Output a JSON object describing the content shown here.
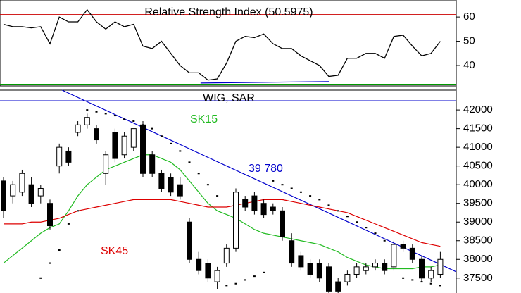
{
  "chart_data": [
    {
      "type": "line",
      "title": "Relative Strength Index (50.5975)",
      "values": [
        57,
        56,
        56,
        55.5,
        56,
        49,
        60,
        58,
        58,
        63,
        58,
        55,
        58,
        56,
        57,
        48,
        47,
        50,
        45,
        40,
        37,
        37,
        34,
        34.5,
        41,
        50,
        52,
        51.5,
        53,
        49,
        47,
        47,
        44,
        42,
        40,
        35.5,
        36,
        43,
        43,
        45,
        45,
        43,
        52,
        52.5,
        48,
        44,
        45,
        50
      ],
      "color": "#000000",
      "ylim": [
        31.6,
        67
      ],
      "yticks": [
        40,
        50,
        60
      ],
      "reference_lines": [
        {
          "value": 61,
          "color": "#cc0000"
        },
        {
          "value": 32.3,
          "color": "#009900"
        }
      ],
      "trend_lines": [
        {
          "x": [
            21.2,
            35
          ],
          "values": [
            32.8,
            33.4
          ],
          "color": "#0000cc"
        }
      ]
    },
    {
      "type": "candlestick",
      "title": "WIG, SAR",
      "open": [
        40100,
        39700,
        39800,
        40000,
        39700,
        39500,
        40500,
        40900,
        41400,
        41600,
        41500,
        40300,
        41400,
        40800,
        41000,
        41600,
        40800,
        40300,
        40200,
        40000,
        39000,
        38000,
        37900,
        37400,
        37900,
        38300,
        39600,
        39700,
        39500,
        39400,
        39300,
        38500,
        38100,
        37900,
        37900,
        37800,
        37400,
        37400,
        37600,
        37700,
        37800,
        37900,
        37800,
        38400,
        38300,
        38000,
        37500,
        37600
      ],
      "high": [
        40200,
        40100,
        40400,
        40200,
        40000,
        39600,
        41100,
        41000,
        41700,
        41900,
        41600,
        40900,
        41500,
        41400,
        41500,
        41700,
        40900,
        40400,
        40300,
        40200,
        39100,
        38200,
        38000,
        37800,
        38400,
        39900,
        39700,
        39800,
        39600,
        39500,
        39400,
        38700,
        38200,
        38000,
        38000,
        37900,
        37500,
        37700,
        37900,
        37900,
        38000,
        38000,
        38500,
        38500,
        38400,
        38100,
        37800,
        38200
      ],
      "low": [
        39100,
        39500,
        39700,
        39400,
        39500,
        38800,
        40300,
        40500,
        41300,
        41500,
        41100,
        40000,
        40600,
        40700,
        40900,
        40200,
        40200,
        39800,
        39700,
        39600,
        37900,
        37600,
        37400,
        37200,
        37800,
        38200,
        39300,
        39200,
        39100,
        39200,
        38500,
        37800,
        37700,
        37500,
        37400,
        37100,
        37100,
        37300,
        37500,
        37600,
        37700,
        37600,
        37700,
        38200,
        37900,
        37400,
        37400,
        37500
      ],
      "close": [
        39300,
        40000,
        40300,
        39500,
        39900,
        38900,
        41000,
        40600,
        41600,
        41800,
        41200,
        40800,
        40700,
        41300,
        41500,
        40300,
        40300,
        39900,
        39800,
        39700,
        38000,
        37700,
        37500,
        37700,
        38300,
        39800,
        39400,
        39300,
        39200,
        39300,
        38600,
        37900,
        37800,
        37600,
        37500,
        37150,
        37150,
        37600,
        37800,
        37800,
        37900,
        37700,
        38400,
        38300,
        38000,
        37500,
        37700,
        38000
      ],
      "series": [
        {
          "name": "SK15",
          "color": "#22bb22",
          "values": [
            37900,
            38100,
            38300,
            38500,
            38700,
            38850,
            38950,
            39300,
            39700,
            40000,
            40200,
            40400,
            40500,
            40600,
            40700,
            40800,
            40800,
            40700,
            40600,
            40400,
            40100,
            39800,
            39500,
            39300,
            39200,
            39100,
            38950,
            38800,
            38700,
            38650,
            38600,
            38550,
            38500,
            38450,
            38400,
            38300,
            38200,
            38050,
            37950,
            37850,
            37800,
            37750,
            37750,
            37750,
            37750,
            37800,
            37800,
            37850
          ]
        },
        {
          "name": "SK45",
          "color": "#dd0000",
          "values": [
            38950,
            38950,
            38950,
            39000,
            39000,
            39050,
            39100,
            39200,
            39300,
            39350,
            39400,
            39450,
            39500,
            39550,
            39600,
            39600,
            39600,
            39600,
            39600,
            39550,
            39500,
            39450,
            39400,
            39400,
            39400,
            39450,
            39500,
            39550,
            39600,
            39600,
            39600,
            39550,
            39500,
            39450,
            39400,
            39350,
            39300,
            39250,
            39150,
            39050,
            38950,
            38850,
            38750,
            38650,
            38550,
            38450,
            38400,
            38350
          ]
        }
      ],
      "sar": [
        null,
        null,
        null,
        null,
        37500,
        37900,
        38250,
        38950,
        39300,
        42000,
        41950,
        41900,
        41850,
        41750,
        41700,
        41600,
        41500,
        41300,
        41100,
        40900,
        40600,
        40300,
        40000,
        39700,
        37300,
        37350,
        37450,
        37550,
        37650,
        40100,
        40000,
        39900,
        39800,
        39700,
        39600,
        39450,
        39300,
        39150,
        39000,
        38850,
        38700,
        38500,
        38300,
        37500,
        37450,
        37400,
        37350,
        37300
      ],
      "annotation": "39 780",
      "trend_lines": [
        {
          "x": [
            6.3,
            48.7
          ],
          "values": [
            42530,
            37670
          ],
          "color": "#0000cc"
        }
      ],
      "reference_lines": [
        {
          "value": 42245,
          "color": "#0000cc"
        }
      ],
      "ylim": [
        37100,
        42530
      ],
      "yticks": [
        37500,
        38000,
        38500,
        39000,
        39500,
        40000,
        40500,
        41000,
        41500,
        42000
      ]
    }
  ]
}
